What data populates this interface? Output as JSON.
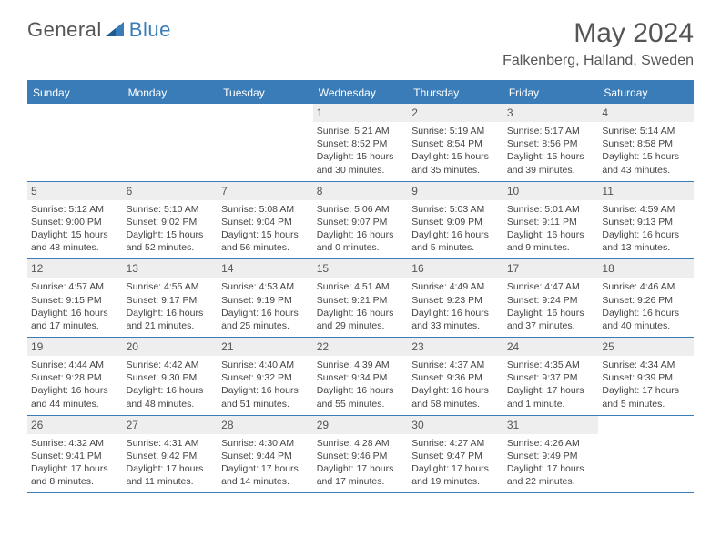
{
  "brand": {
    "part1": "General",
    "part2": "Blue"
  },
  "title": "May 2024",
  "location": "Falkenberg, Halland, Sweden",
  "colors": {
    "accent": "#3a7cb8",
    "header_bg": "#3a7cb8",
    "daynum_bg": "#eeeeee",
    "text": "#555555",
    "body_text": "#444444"
  },
  "weekdays": [
    "Sunday",
    "Monday",
    "Tuesday",
    "Wednesday",
    "Thursday",
    "Friday",
    "Saturday"
  ],
  "weeks": [
    [
      {
        "empty": true
      },
      {
        "empty": true
      },
      {
        "empty": true
      },
      {
        "n": "1",
        "sr": "5:21 AM",
        "ss": "8:52 PM",
        "dl": "15 hours and 30 minutes."
      },
      {
        "n": "2",
        "sr": "5:19 AM",
        "ss": "8:54 PM",
        "dl": "15 hours and 35 minutes."
      },
      {
        "n": "3",
        "sr": "5:17 AM",
        "ss": "8:56 PM",
        "dl": "15 hours and 39 minutes."
      },
      {
        "n": "4",
        "sr": "5:14 AM",
        "ss": "8:58 PM",
        "dl": "15 hours and 43 minutes."
      }
    ],
    [
      {
        "n": "5",
        "sr": "5:12 AM",
        "ss": "9:00 PM",
        "dl": "15 hours and 48 minutes."
      },
      {
        "n": "6",
        "sr": "5:10 AM",
        "ss": "9:02 PM",
        "dl": "15 hours and 52 minutes."
      },
      {
        "n": "7",
        "sr": "5:08 AM",
        "ss": "9:04 PM",
        "dl": "15 hours and 56 minutes."
      },
      {
        "n": "8",
        "sr": "5:06 AM",
        "ss": "9:07 PM",
        "dl": "16 hours and 0 minutes."
      },
      {
        "n": "9",
        "sr": "5:03 AM",
        "ss": "9:09 PM",
        "dl": "16 hours and 5 minutes."
      },
      {
        "n": "10",
        "sr": "5:01 AM",
        "ss": "9:11 PM",
        "dl": "16 hours and 9 minutes."
      },
      {
        "n": "11",
        "sr": "4:59 AM",
        "ss": "9:13 PM",
        "dl": "16 hours and 13 minutes."
      }
    ],
    [
      {
        "n": "12",
        "sr": "4:57 AM",
        "ss": "9:15 PM",
        "dl": "16 hours and 17 minutes."
      },
      {
        "n": "13",
        "sr": "4:55 AM",
        "ss": "9:17 PM",
        "dl": "16 hours and 21 minutes."
      },
      {
        "n": "14",
        "sr": "4:53 AM",
        "ss": "9:19 PM",
        "dl": "16 hours and 25 minutes."
      },
      {
        "n": "15",
        "sr": "4:51 AM",
        "ss": "9:21 PM",
        "dl": "16 hours and 29 minutes."
      },
      {
        "n": "16",
        "sr": "4:49 AM",
        "ss": "9:23 PM",
        "dl": "16 hours and 33 minutes."
      },
      {
        "n": "17",
        "sr": "4:47 AM",
        "ss": "9:24 PM",
        "dl": "16 hours and 37 minutes."
      },
      {
        "n": "18",
        "sr": "4:46 AM",
        "ss": "9:26 PM",
        "dl": "16 hours and 40 minutes."
      }
    ],
    [
      {
        "n": "19",
        "sr": "4:44 AM",
        "ss": "9:28 PM",
        "dl": "16 hours and 44 minutes."
      },
      {
        "n": "20",
        "sr": "4:42 AM",
        "ss": "9:30 PM",
        "dl": "16 hours and 48 minutes."
      },
      {
        "n": "21",
        "sr": "4:40 AM",
        "ss": "9:32 PM",
        "dl": "16 hours and 51 minutes."
      },
      {
        "n": "22",
        "sr": "4:39 AM",
        "ss": "9:34 PM",
        "dl": "16 hours and 55 minutes."
      },
      {
        "n": "23",
        "sr": "4:37 AM",
        "ss": "9:36 PM",
        "dl": "16 hours and 58 minutes."
      },
      {
        "n": "24",
        "sr": "4:35 AM",
        "ss": "9:37 PM",
        "dl": "17 hours and 1 minute."
      },
      {
        "n": "25",
        "sr": "4:34 AM",
        "ss": "9:39 PM",
        "dl": "17 hours and 5 minutes."
      }
    ],
    [
      {
        "n": "26",
        "sr": "4:32 AM",
        "ss": "9:41 PM",
        "dl": "17 hours and 8 minutes."
      },
      {
        "n": "27",
        "sr": "4:31 AM",
        "ss": "9:42 PM",
        "dl": "17 hours and 11 minutes."
      },
      {
        "n": "28",
        "sr": "4:30 AM",
        "ss": "9:44 PM",
        "dl": "17 hours and 14 minutes."
      },
      {
        "n": "29",
        "sr": "4:28 AM",
        "ss": "9:46 PM",
        "dl": "17 hours and 17 minutes."
      },
      {
        "n": "30",
        "sr": "4:27 AM",
        "ss": "9:47 PM",
        "dl": "17 hours and 19 minutes."
      },
      {
        "n": "31",
        "sr": "4:26 AM",
        "ss": "9:49 PM",
        "dl": "17 hours and 22 minutes."
      },
      {
        "empty": true
      }
    ]
  ],
  "labels": {
    "sunrise": "Sunrise:",
    "sunset": "Sunset:",
    "daylight": "Daylight:"
  }
}
